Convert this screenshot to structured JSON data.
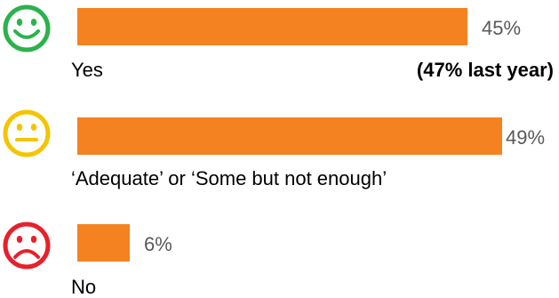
{
  "chart_data": {
    "type": "bar",
    "orientation": "horizontal",
    "categories": [
      "Yes",
      "‘Adequate’ or ‘Some but not enough’",
      "No"
    ],
    "values": [
      45,
      49,
      6
    ],
    "value_labels": [
      "45%",
      "49%",
      "6%"
    ],
    "icons": [
      "happy-face-icon",
      "neutral-face-icon",
      "sad-face-icon"
    ],
    "icon_colors": [
      "#2bb24c",
      "#f5c400",
      "#e8202a"
    ],
    "bar_color": "#f58220",
    "annotation": "(47% last year)",
    "xlim": [
      0,
      49
    ],
    "grid": false,
    "legend": "none"
  }
}
